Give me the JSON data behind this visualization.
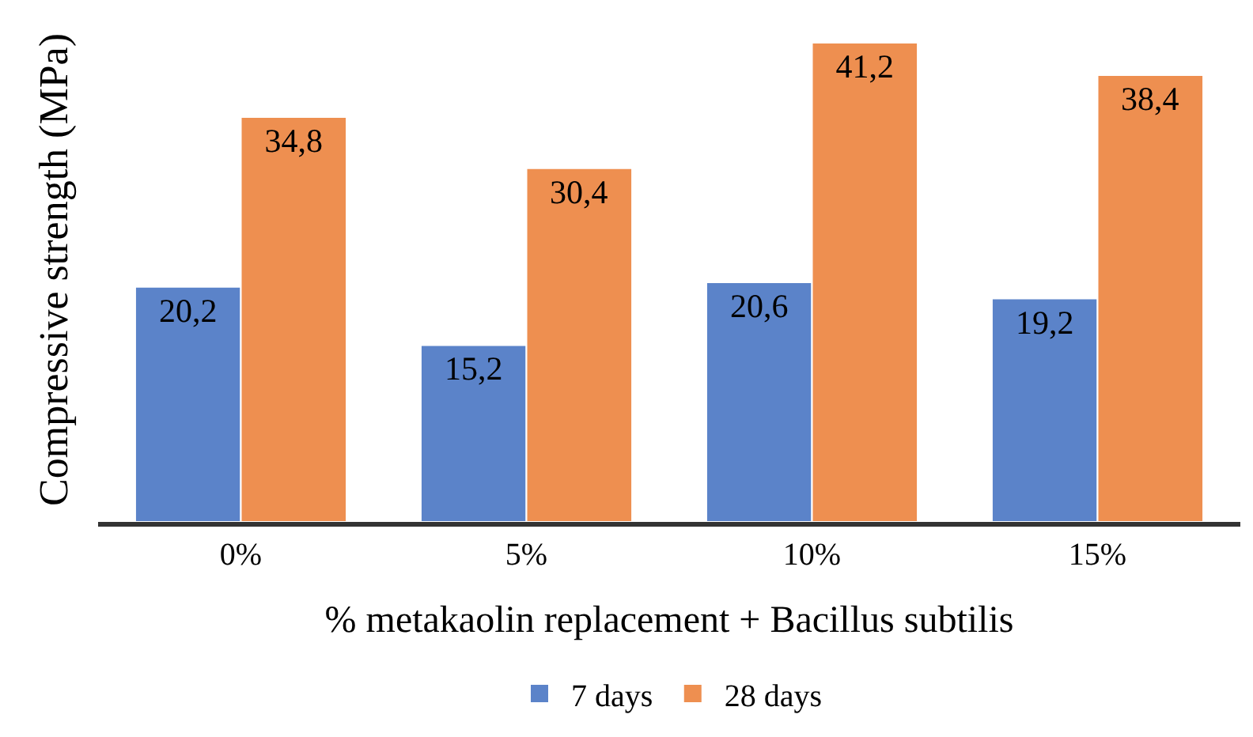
{
  "chart_data": {
    "type": "bar",
    "xlabel": "% metakaolin replacement + Bacillus subtilis",
    "ylabel": "Compressive strength (MPa)",
    "categories": [
      "0%",
      "5%",
      "10%",
      "15%"
    ],
    "series": [
      {
        "name": "7 days",
        "color": "#5b83c9",
        "values": [
          20.2,
          15.2,
          20.6,
          19.2
        ],
        "value_labels": [
          "20,2",
          "15,2",
          "20,6",
          "19,2"
        ]
      },
      {
        "name": "28 days",
        "color": "#ee8f50",
        "values": [
          34.8,
          30.4,
          41.2,
          38.4
        ],
        "value_labels": [
          "34,8",
          "30,4",
          "41,2",
          "38,4"
        ]
      }
    ],
    "legend": "bottom"
  }
}
